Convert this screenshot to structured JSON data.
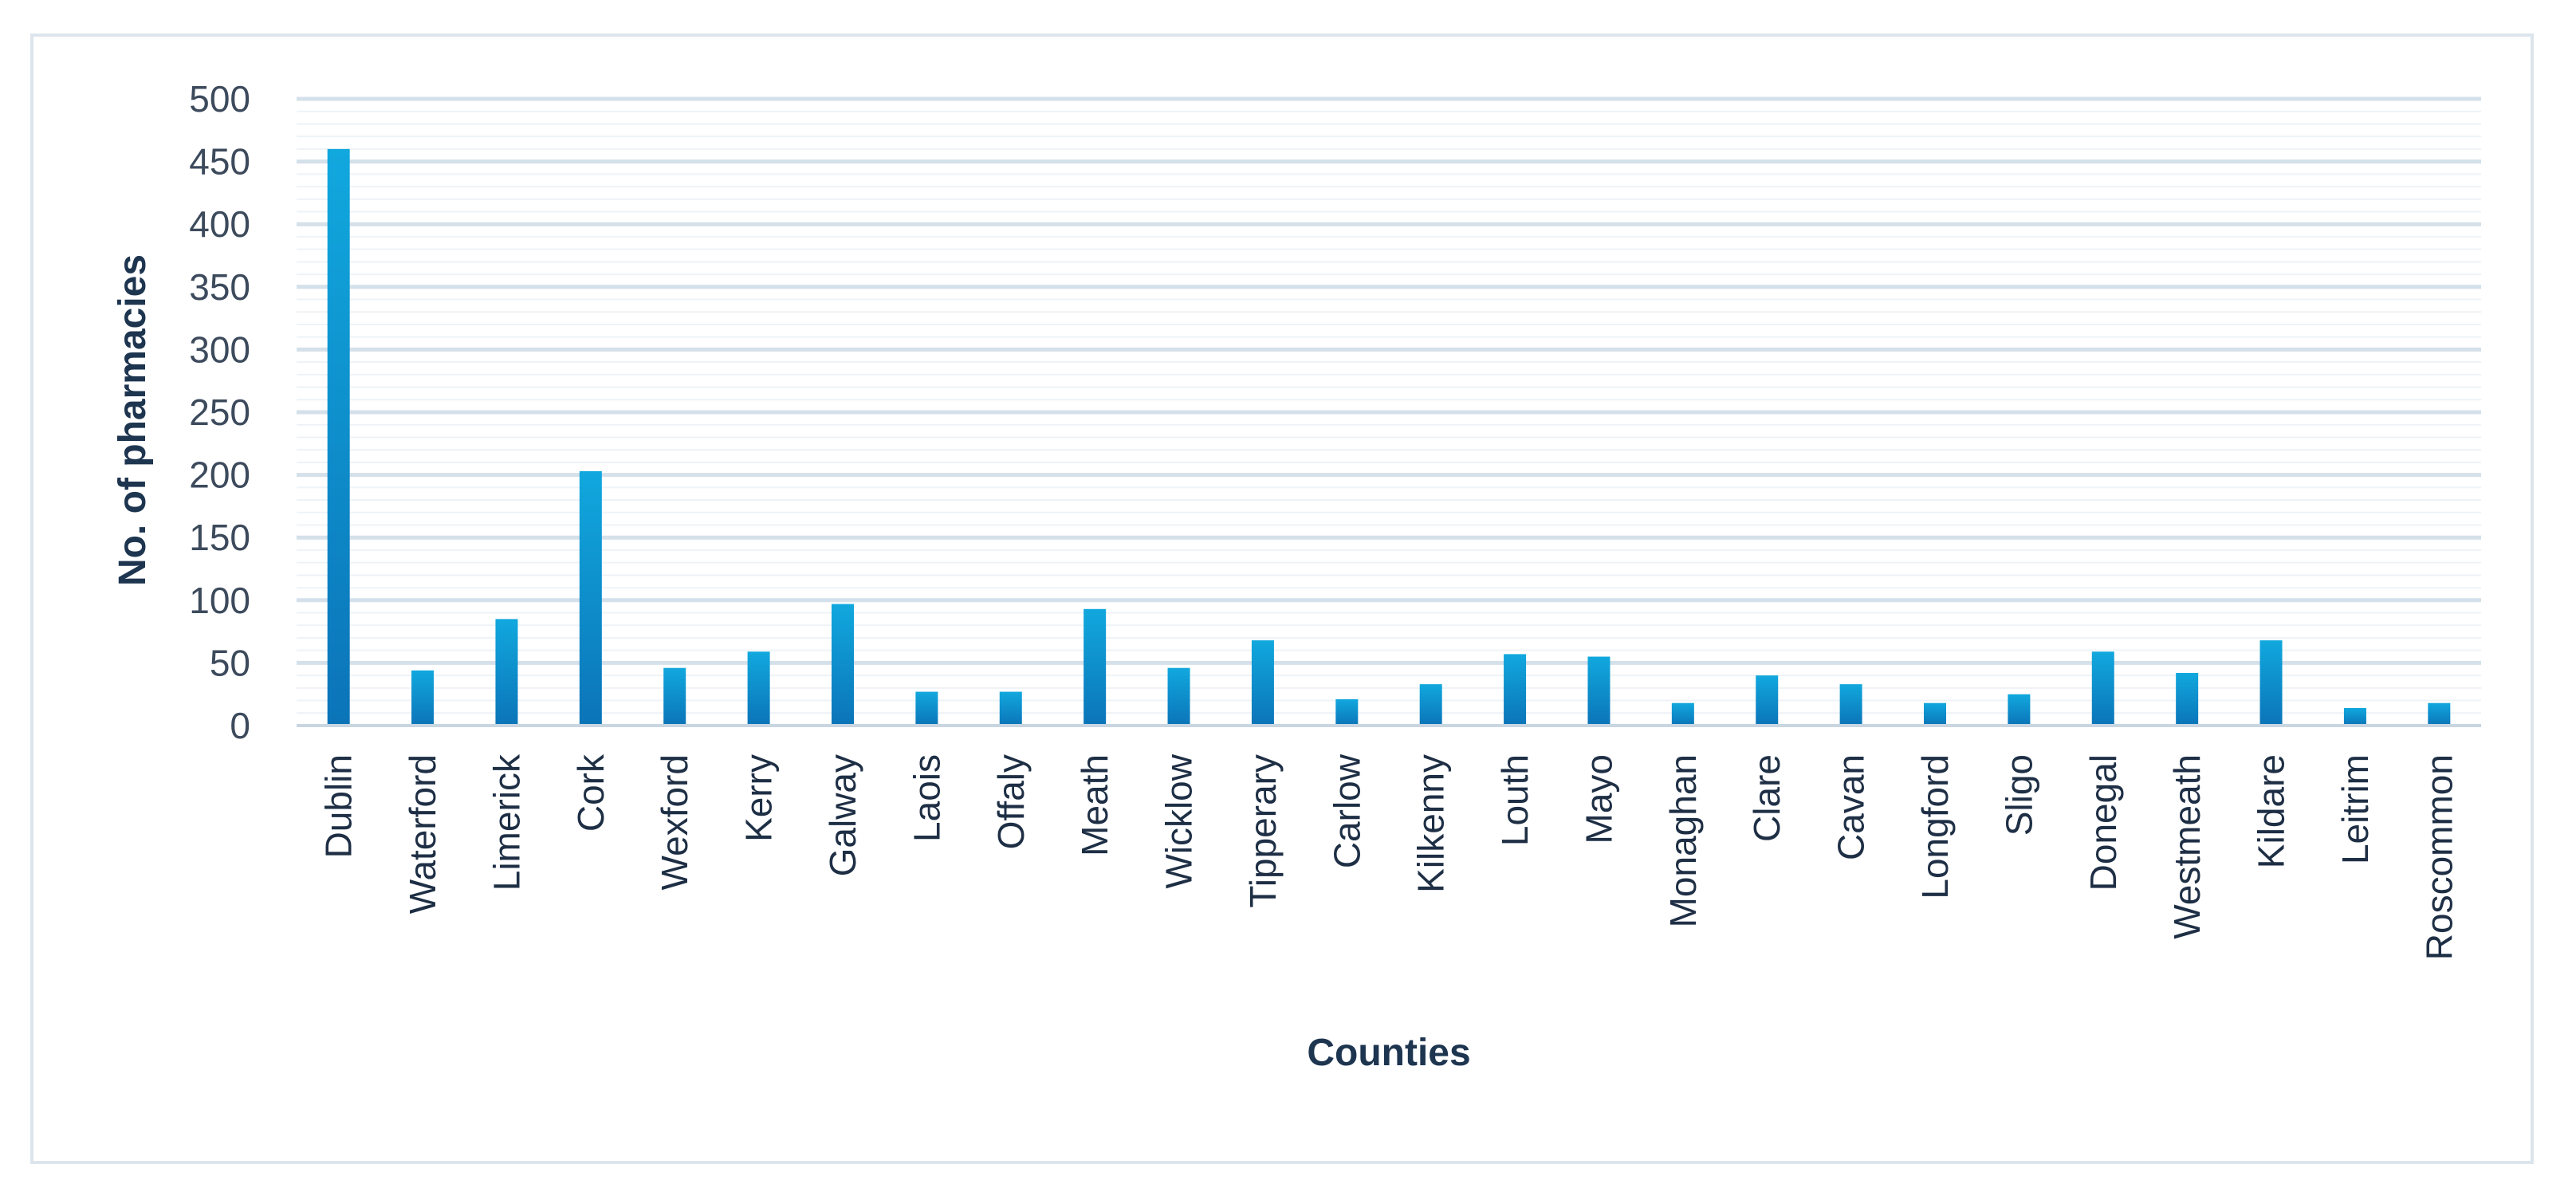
{
  "chart_data": {
    "type": "bar",
    "title": "",
    "xlabel": "Counties",
    "ylabel": "No. of pharmacies",
    "ylim": [
      0,
      500
    ],
    "yticks": [
      0,
      50,
      100,
      150,
      200,
      250,
      300,
      350,
      400,
      450,
      500
    ],
    "grid": true,
    "legend": "none",
    "bar_color_top": "#11a8de",
    "bar_color_bottom": "#0b74b8",
    "categories": [
      "Dublin",
      "Waterford",
      "Limerick",
      "Cork",
      "Wexford",
      "Kerry",
      "Galway",
      "Laois",
      "Offaly",
      "Meath",
      "Wicklow",
      "Tipperary",
      "Carlow",
      "Kilkenny",
      "Louth",
      "Mayo",
      "Monaghan",
      "Clare",
      "Cavan",
      "Longford",
      "Sligo",
      "Donegal",
      "Westmeath",
      "Kildare",
      "Leitrim",
      "Roscommon"
    ],
    "values": [
      460,
      44,
      85,
      203,
      46,
      59,
      97,
      27,
      27,
      93,
      46,
      68,
      21,
      33,
      57,
      55,
      18,
      40,
      33,
      18,
      25,
      59,
      42,
      68,
      14,
      18
    ]
  }
}
